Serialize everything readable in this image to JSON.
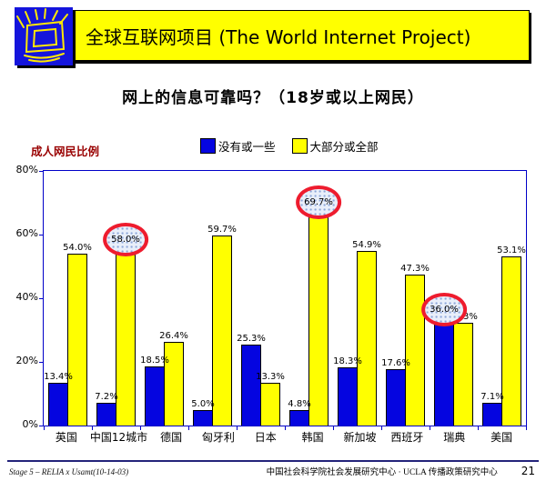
{
  "header": {
    "title": "全球互联网项目 (The World Internet Project)"
  },
  "subtitle": "网上的信息可靠吗？（18岁或以上网民）",
  "chart": {
    "ylabel": "成人网民比例",
    "legend": [
      {
        "label": "没有或一些",
        "color": "#0505E0"
      },
      {
        "label": "大部分或全部",
        "color": "#FFFF00"
      }
    ]
  },
  "chart_data": {
    "type": "bar",
    "title": "网上的信息可靠吗？（18岁或以上网民）",
    "ylabel": "成人网民比例",
    "ylim": [
      0,
      80
    ],
    "yticks": [
      "80%",
      "60%",
      "40%",
      "20%",
      "0%"
    ],
    "grid": "top border line only, blue axis frame",
    "legend_position": "top-center",
    "categories": [
      "英国",
      "中国12城市",
      "德国",
      "匈牙利",
      "日本",
      "韩国",
      "新加坡",
      "西班牙",
      "瑞典",
      "美国"
    ],
    "series": [
      {
        "name": "没有或一些",
        "color": "#0505E0",
        "values": [
          13.4,
          7.2,
          18.5,
          5.0,
          25.3,
          4.8,
          18.3,
          17.6,
          36.0,
          7.1
        ],
        "labels": [
          "13.4%",
          "7.2%",
          "18.5%",
          "5.0%",
          "25.3%",
          "4.8%",
          "18.3%",
          "17.6%",
          "36.0%",
          "7.1%"
        ],
        "circled": [
          false,
          false,
          false,
          false,
          false,
          false,
          false,
          false,
          true,
          false
        ]
      },
      {
        "name": "大部分或全部",
        "color": "#FFFF00",
        "values": [
          54.0,
          58.0,
          26.4,
          59.7,
          13.3,
          69.7,
          54.9,
          47.3,
          32.3,
          53.1
        ],
        "labels": [
          "54.0%",
          "58.0%",
          "26.4%",
          "59.7%",
          "13.3%",
          "69.7%",
          "54.9%",
          "47.3%",
          "32.3%",
          "53.1%"
        ],
        "circled": [
          false,
          true,
          false,
          false,
          false,
          true,
          false,
          false,
          false,
          false
        ]
      }
    ],
    "annotations": {
      "highlight_shape": "red ellipse with dotted light-blue fill",
      "highlight_color": "#ee1c2e",
      "highlighted_values": [
        "58.0%",
        "69.7%",
        "36.0%"
      ]
    }
  },
  "footer": {
    "left": "Stage 5 – RELIA x Usamt(10-14-03)",
    "right": "中国社会科学院社会发展研究中心 · UCLA 传播政策研究中心",
    "page": "21"
  }
}
